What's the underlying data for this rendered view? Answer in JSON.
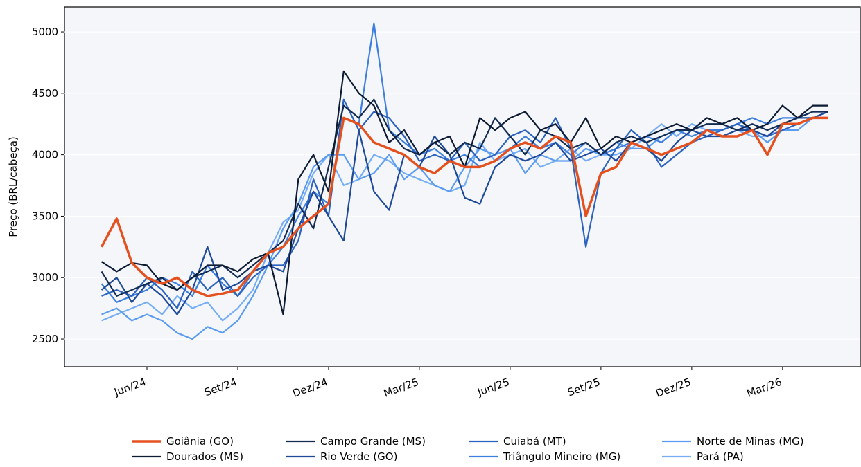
{
  "chart_data": {
    "type": "line",
    "ylabel": "Preço (BRL/cabeça)",
    "categories": [
      null,
      null,
      null,
      "Jun/24",
      null,
      null,
      null,
      null,
      null,
      "Set/24",
      null,
      null,
      null,
      null,
      null,
      "Dez/24",
      null,
      null,
      null,
      null,
      null,
      "Mar/25",
      null,
      null,
      null,
      null,
      null,
      "Jun/25",
      null,
      null,
      null,
      null,
      null,
      "Set/25",
      null,
      null,
      null,
      null,
      null,
      "Dez/25",
      null,
      null,
      null,
      null,
      null,
      "Mar/26",
      null,
      null,
      null
    ],
    "ylim": [
      2275,
      5203
    ],
    "yticks": [
      2500,
      3000,
      3500,
      4000,
      4500,
      5000
    ],
    "grid": true,
    "series": [
      {
        "name": "Goiânia (GO)",
        "color": "#e4501e",
        "values": [
          3250,
          3480,
          3120,
          3000,
          2950,
          3000,
          2900,
          2850,
          2870,
          2900,
          3050,
          3200,
          3250,
          3400,
          3500,
          3600,
          4300,
          4250,
          4100,
          4050,
          4000,
          3900,
          3850,
          3950,
          3900,
          3900,
          3950,
          4050,
          4100,
          4050,
          4150,
          4100,
          3500,
          3850,
          3900,
          4100,
          4050,
          4000,
          4050,
          4100,
          4200,
          4150,
          4150,
          4200,
          4000,
          4250,
          4250,
          4300,
          4300
        ]
      },
      {
        "name": "Dourados (MS)",
        "color": "#0d1b33",
        "values": [
          3130,
          3050,
          3120,
          3100,
          2950,
          2900,
          3000,
          3100,
          3100,
          3050,
          3150,
          3200,
          2700,
          3800,
          4000,
          3700,
          4680,
          4500,
          4400,
          4100,
          4200,
          4000,
          4100,
          4150,
          3900,
          4300,
          4200,
          4300,
          4350,
          4200,
          4250,
          4100,
          4300,
          4050,
          4150,
          4100,
          4150,
          4200,
          4250,
          4200,
          4300,
          4250,
          4300,
          4200,
          4250,
          4400,
          4300,
          4400,
          4400
        ]
      },
      {
        "name": "Campo Grande (MS)",
        "color": "#142c52",
        "values": [
          3050,
          2850,
          2900,
          2950,
          3000,
          2900,
          3000,
          3050,
          3100,
          3000,
          3100,
          3200,
          3300,
          3600,
          3400,
          3900,
          4400,
          4300,
          4450,
          4200,
          4050,
          4000,
          4100,
          4000,
          4100,
          4050,
          4300,
          4150,
          4000,
          4200,
          4150,
          4050,
          4100,
          4000,
          4100,
          4150,
          4100,
          4150,
          4200,
          4200,
          4250,
          4250,
          4200,
          4250,
          4200,
          4250,
          4300,
          4350,
          4350
        ]
      },
      {
        "name": "Rio Verde (GO)",
        "color": "#1f4a99",
        "values": [
          2900,
          3000,
          2800,
          2950,
          2850,
          2700,
          2900,
          3250,
          2900,
          2950,
          3050,
          3100,
          3050,
          3400,
          3700,
          3500,
          3300,
          4200,
          3700,
          3550,
          4000,
          3900,
          4150,
          4000,
          3650,
          3600,
          3900,
          4000,
          3950,
          4000,
          4100,
          3950,
          4000,
          4050,
          3950,
          4100,
          4050,
          3950,
          4100,
          4200,
          4150,
          4150,
          4200,
          4200,
          4150,
          4250,
          4300,
          4300,
          4350
        ]
      },
      {
        "name": "Cuiabá (MT)",
        "color": "#2b63bf",
        "values": [
          2850,
          2900,
          2850,
          3000,
          2900,
          2750,
          3050,
          2900,
          3000,
          2850,
          3000,
          3100,
          3100,
          3300,
          3800,
          3500,
          4450,
          4200,
          4350,
          4300,
          4150,
          3950,
          4000,
          3950,
          4100,
          3950,
          4000,
          4150,
          4200,
          4100,
          4300,
          4050,
          3250,
          3850,
          4050,
          4200,
          4100,
          3900,
          4000,
          4100,
          4150,
          4200,
          4250,
          4200,
          4150,
          4200,
          4250,
          4300,
          4300
        ]
      },
      {
        "name": "Triângulo Mineiro (MG)",
        "color": "#3d7fde",
        "values": [
          2950,
          2800,
          2850,
          2900,
          3000,
          2950,
          2850,
          3100,
          2950,
          2850,
          3050,
          3100,
          3250,
          3500,
          3700,
          3600,
          4300,
          4250,
          5070,
          4200,
          4100,
          4000,
          4050,
          3950,
          4000,
          3900,
          3950,
          4050,
          4150,
          4050,
          4100,
          4000,
          4100,
          4000,
          4050,
          4100,
          4150,
          4100,
          4200,
          4150,
          4200,
          4200,
          4250,
          4300,
          4250,
          4300,
          4300,
          4350,
          4350
        ]
      },
      {
        "name": "Norte de Minas (MG)",
        "color": "#5b9bf0",
        "values": [
          2700,
          2750,
          2650,
          2700,
          2650,
          2550,
          2500,
          2600,
          2550,
          2650,
          2850,
          3100,
          3400,
          3600,
          3900,
          4000,
          4000,
          3800,
          3850,
          4000,
          3800,
          3900,
          3750,
          3700,
          3900,
          4050,
          4000,
          4050,
          3850,
          4000,
          3950,
          3950,
          4050,
          4000,
          4100,
          4050,
          4050,
          4150,
          4200,
          4200,
          4150,
          4200,
          4250,
          4200,
          4100,
          4200,
          4200,
          4300,
          4300
        ]
      },
      {
        "name": "Pará (PA)",
        "color": "#76aef5",
        "values": [
          2650,
          2700,
          2750,
          2800,
          2700,
          2850,
          2750,
          2800,
          2650,
          2750,
          2900,
          3200,
          3450,
          3550,
          3850,
          4000,
          3750,
          3800,
          4000,
          3950,
          3850,
          3800,
          3750,
          3700,
          3750,
          4100,
          3950,
          4000,
          4050,
          3900,
          3950,
          4050,
          3950,
          4000,
          4000,
          4050,
          4150,
          4250,
          4150,
          4250,
          4200,
          4150,
          4200,
          4150,
          4150,
          4250,
          4250,
          4300,
          4350
        ]
      }
    ]
  }
}
